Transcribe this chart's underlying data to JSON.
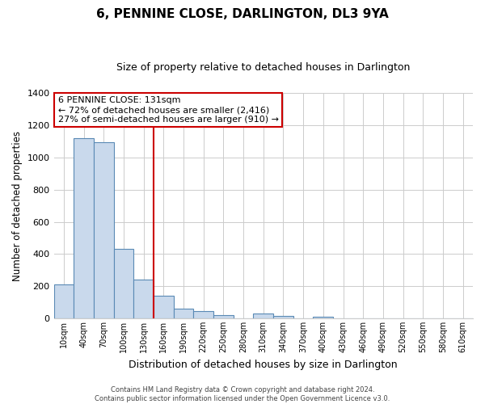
{
  "title": "6, PENNINE CLOSE, DARLINGTON, DL3 9YA",
  "subtitle": "Size of property relative to detached houses in Darlington",
  "xlabel": "Distribution of detached houses by size in Darlington",
  "ylabel": "Number of detached properties",
  "bin_labels": [
    "10sqm",
    "40sqm",
    "70sqm",
    "100sqm",
    "130sqm",
    "160sqm",
    "190sqm",
    "220sqm",
    "250sqm",
    "280sqm",
    "310sqm",
    "340sqm",
    "370sqm",
    "400sqm",
    "430sqm",
    "460sqm",
    "490sqm",
    "520sqm",
    "550sqm",
    "580sqm",
    "610sqm"
  ],
  "bar_values": [
    210,
    1120,
    1095,
    430,
    240,
    140,
    60,
    47,
    22,
    0,
    30,
    15,
    0,
    10,
    0,
    0,
    0,
    0,
    0,
    0,
    0
  ],
  "bar_color": "#c9d9ec",
  "bar_edge_color": "#5a8ab5",
  "vline_color": "#cc0000",
  "vline_bin_index": 4,
  "box_text_line1": "6 PENNINE CLOSE: 131sqm",
  "box_text_line2": "← 72% of detached houses are smaller (2,416)",
  "box_text_line3": "27% of semi-detached houses are larger (910) →",
  "box_edge_color": "#cc0000",
  "box_facecolor": "white",
  "ylim": [
    0,
    1400
  ],
  "yticks": [
    0,
    200,
    400,
    600,
    800,
    1000,
    1200,
    1400
  ],
  "footer_line1": "Contains HM Land Registry data © Crown copyright and database right 2024.",
  "footer_line2": "Contains public sector information licensed under the Open Government Licence v3.0.",
  "background_color": "white",
  "grid_color": "#cccccc",
  "title_fontsize": 11,
  "subtitle_fontsize": 9
}
